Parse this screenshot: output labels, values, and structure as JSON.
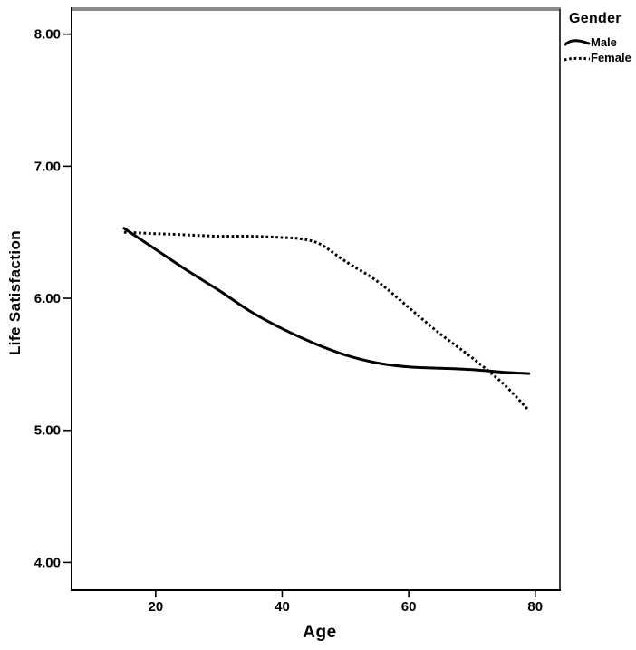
{
  "colors": {
    "line": "#000000",
    "axis": "#000000",
    "frame_top": "#8a8a8a",
    "frame_right": "#3d3d3d",
    "background": "#ffffff",
    "text": "#000000"
  },
  "chart_data": {
    "type": "line",
    "title": "",
    "xlabel": "Age",
    "ylabel": "Life Satisfaction",
    "xlim": [
      6.7,
      83.9
    ],
    "ylim": [
      3.79,
      8.19
    ],
    "x_ticks": [
      20,
      40,
      60,
      80
    ],
    "x_tick_labels": [
      "20",
      "40",
      "60",
      "80"
    ],
    "y_ticks": [
      4,
      5,
      6,
      7,
      8
    ],
    "y_tick_labels": [
      "4.00",
      "5.00",
      "6.00",
      "7.00",
      "8.00"
    ],
    "grid": false,
    "legend": {
      "title": "Gender",
      "position": "top-right-outside",
      "entries": [
        "Male",
        "Female"
      ]
    },
    "series": [
      {
        "name": "Male",
        "style": "solid",
        "color": "#000000",
        "points": [
          [
            15,
            6.53
          ],
          [
            20,
            6.37
          ],
          [
            25,
            6.21
          ],
          [
            30,
            6.06
          ],
          [
            35,
            5.9
          ],
          [
            40,
            5.77
          ],
          [
            45,
            5.66
          ],
          [
            50,
            5.57
          ],
          [
            55,
            5.51
          ],
          [
            60,
            5.48
          ],
          [
            65,
            5.47
          ],
          [
            70,
            5.46
          ],
          [
            75,
            5.44
          ],
          [
            79,
            5.43
          ]
        ]
      },
      {
        "name": "Female",
        "style": "dotted",
        "color": "#000000",
        "points": [
          [
            15,
            6.5
          ],
          [
            20,
            6.49
          ],
          [
            25,
            6.48
          ],
          [
            30,
            6.47
          ],
          [
            35,
            6.47
          ],
          [
            40,
            6.46
          ],
          [
            43,
            6.45
          ],
          [
            46,
            6.41
          ],
          [
            50,
            6.28
          ],
          [
            55,
            6.13
          ],
          [
            60,
            5.93
          ],
          [
            65,
            5.73
          ],
          [
            70,
            5.55
          ],
          [
            75,
            5.35
          ],
          [
            79,
            5.15
          ]
        ]
      }
    ]
  }
}
